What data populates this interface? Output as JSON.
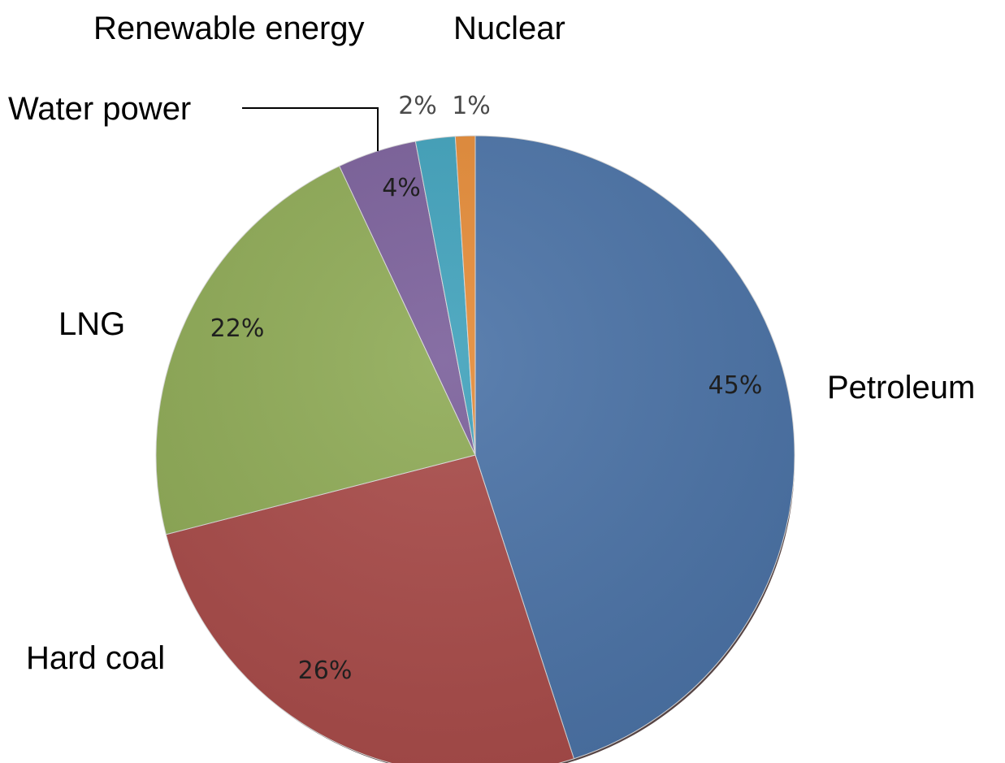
{
  "chart_data": {
    "type": "pie",
    "title": "",
    "slices": [
      {
        "name": "Petroleum",
        "value": 45,
        "label": "45%",
        "color": "#4a72a6"
      },
      {
        "name": "Hard coal",
        "value": 26,
        "label": "26%",
        "color": "#a84a48"
      },
      {
        "name": "LNG",
        "value": 22,
        "label": "22%",
        "color": "#8eaa55"
      },
      {
        "name": "Water power",
        "value": 4,
        "label": "4%",
        "color": "#7a5f9a"
      },
      {
        "name": "Renewable energy",
        "value": 2,
        "label": "2%",
        "color": "#3fa1bb"
      },
      {
        "name": "Nuclear",
        "value": 1,
        "label": "1%",
        "color": "#e48a36"
      }
    ],
    "start_angle": "12 o'clock",
    "direction": "clockwise",
    "legend": "none"
  }
}
